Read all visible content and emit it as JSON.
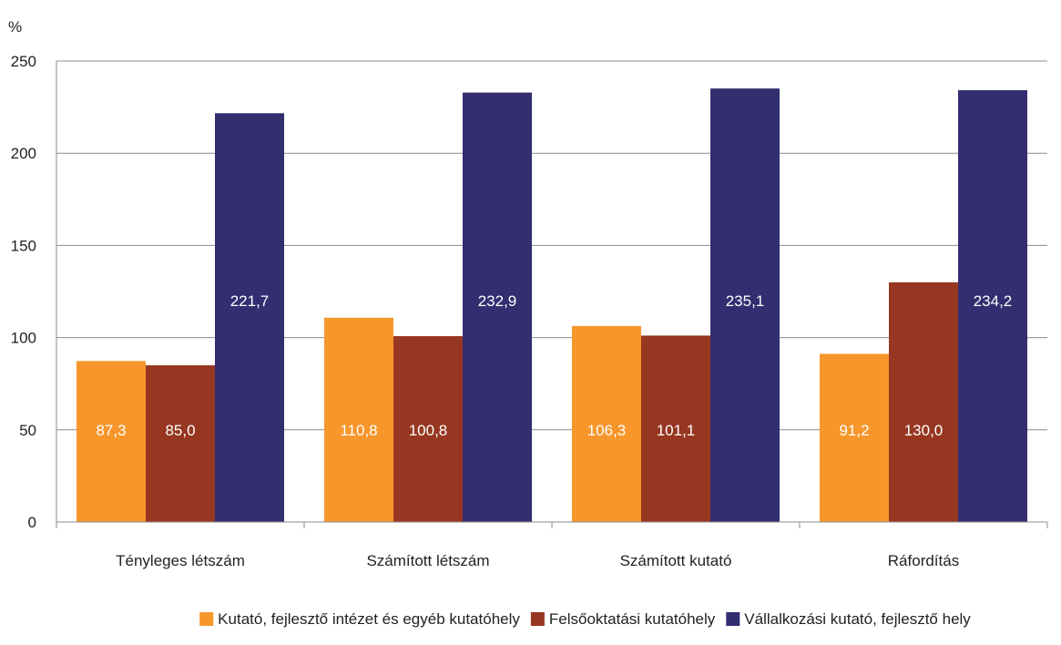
{
  "chart_data": {
    "type": "bar",
    "unit_label": "%",
    "categories": [
      "Tényleges létszám",
      "Számított létszám",
      "Számított kutató",
      "Ráfordítás"
    ],
    "series": [
      {
        "name": "Kutató, fejlesztő intézet és egyéb kutatóhely",
        "color": "#F7962B",
        "values": [
          87.3,
          110.8,
          106.3,
          91.2
        ],
        "labels": [
          "87,3",
          "110,8",
          "106,3",
          "91,2"
        ]
      },
      {
        "name": "Felsőoktatási kutatóhely",
        "color": "#973722",
        "values": [
          85.0,
          100.8,
          101.1,
          130.0
        ],
        "labels": [
          "85,0",
          "100,8",
          "101,1",
          "130,0"
        ]
      },
      {
        "name": "Vállalkozási kutató, fejlesztő hely",
        "color": "#322E70",
        "values": [
          221.7,
          232.9,
          235.1,
          234.2
        ],
        "labels": [
          "221,7",
          "232,9",
          "235,1",
          "234,2"
        ]
      }
    ],
    "yticks": [
      "0",
      "50",
      "100",
      "150",
      "200",
      "250"
    ],
    "ylim": [
      0,
      250
    ],
    "grid": true,
    "legend_position": "bottom"
  }
}
